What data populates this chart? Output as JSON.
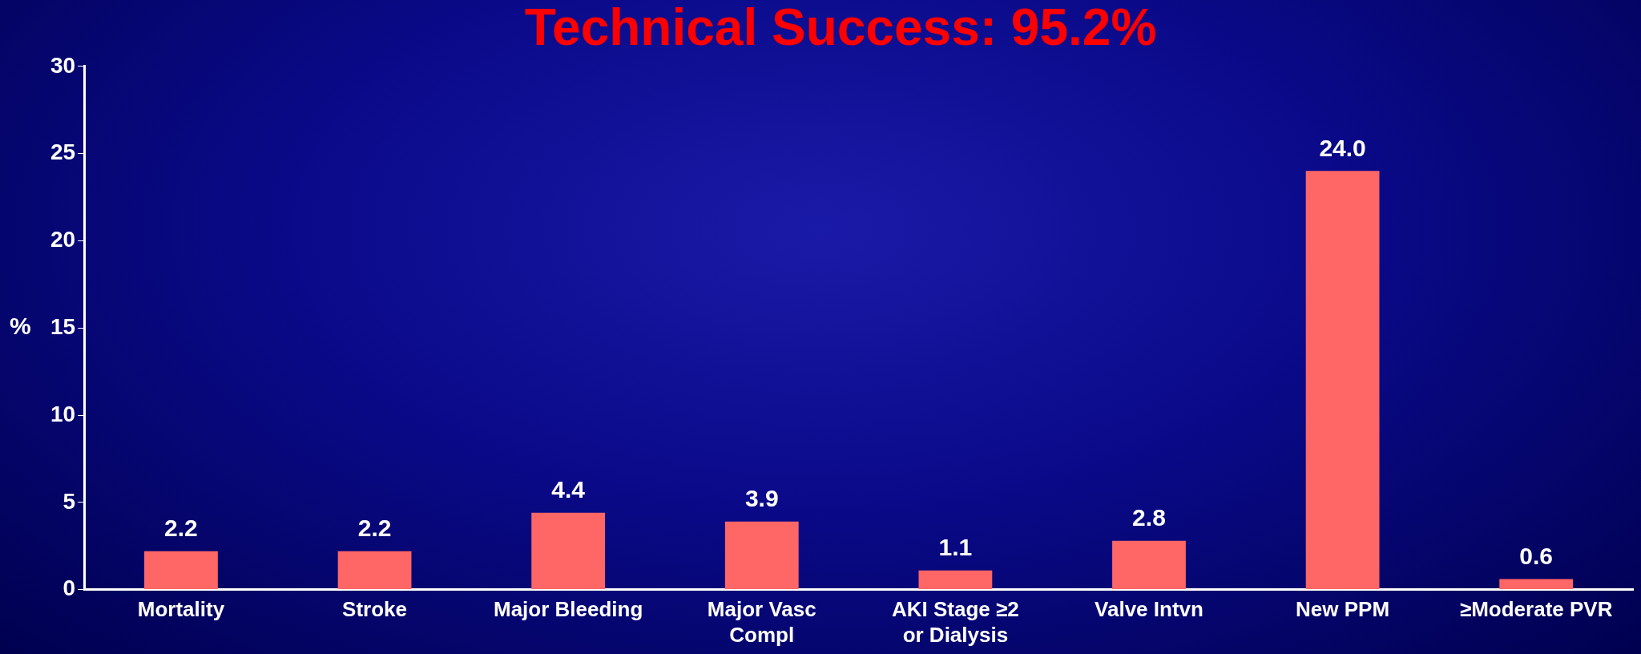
{
  "chart_data": {
    "type": "bar",
    "title": "Technical Success: 95.2%",
    "ylabel": "%",
    "categories": [
      "Mortality",
      "Stroke",
      "Major Bleeding",
      "Major Vasc Compl",
      "AKI Stage ≥2 or Dialysis",
      "Valve Intvn",
      "New PPM",
      "≥Moderate PVR"
    ],
    "values": [
      2.2,
      2.2,
      4.4,
      3.9,
      1.1,
      2.8,
      24.0,
      0.6
    ],
    "value_labels": [
      "2.2",
      "2.2",
      "4.4",
      "3.9",
      "1.1",
      "2.8",
      "24.0",
      "0.6"
    ],
    "color": "#ff6666",
    "ylim": [
      0,
      30
    ],
    "yticks": [
      0,
      5,
      10,
      15,
      20,
      25,
      30
    ],
    "grid": false,
    "legend": false
  }
}
